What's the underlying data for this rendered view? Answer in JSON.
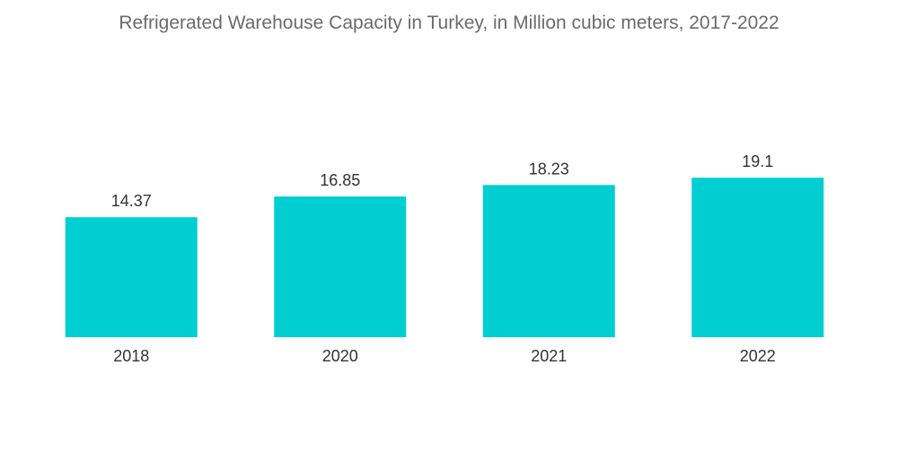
{
  "chart_data": {
    "type": "bar",
    "title": "Refrigerated Warehouse Capacity in Turkey, in Million cubic meters, 2017-2022",
    "categories": [
      "2018",
      "2020",
      "2021",
      "2022"
    ],
    "values": [
      14.37,
      16.85,
      18.23,
      19.1
    ],
    "value_labels": [
      "14.37",
      "16.85",
      "18.23",
      "19.1"
    ],
    "xlabel": "",
    "ylabel": "",
    "ylim": [
      0,
      20
    ],
    "grid": false,
    "legend": "none",
    "bar_color": "#00ced1"
  }
}
